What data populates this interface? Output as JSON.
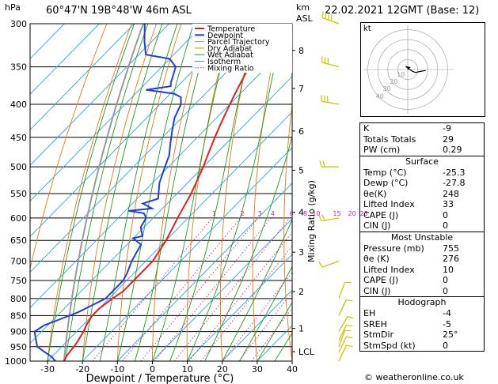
{
  "header": {
    "pressure_unit": "hPa",
    "location": "60°47'N  19B°48'W  46m  ASL",
    "km_label": "km",
    "asl_label": "ASL",
    "datetime": "22.02.2021  12GMT  (Base: 12)"
  },
  "colors": {
    "temperature": "#dd2222",
    "dewpoint": "#1f3fd6",
    "parcel": "#999999",
    "dry_adiabat": "#e07a1a",
    "wet_adiabat": "#1f9a1f",
    "isotherm": "#2aa6e0",
    "mixing_ratio": "#cc2299",
    "wind": "#c8c800"
  },
  "legend": {
    "items": [
      "Temperature",
      "Dewpoint",
      "Parcel Trajectory",
      "Dry Adiabat",
      "Wet Adiabat",
      "Isotherm",
      "Mixing Ratio"
    ]
  },
  "chart_data": {
    "type": "skew-t log-p",
    "xlabel": "Dewpoint / Temperature (°C)",
    "x_ticks": [
      "-30",
      "-20",
      "-10",
      "0",
      "10",
      "20",
      "30",
      "40"
    ],
    "x_range": [
      -35,
      40
    ],
    "pressure_ticks": [
      "300",
      "350",
      "400",
      "450",
      "500",
      "550",
      "600",
      "650",
      "700",
      "750",
      "800",
      "850",
      "900",
      "950",
      "1000"
    ],
    "pressure_range": [
      300,
      1000
    ],
    "km_ticks": [
      {
        "label": "8",
        "p": 330
      },
      {
        "label": "7",
        "p": 378
      },
      {
        "label": "6",
        "p": 440
      },
      {
        "label": "5",
        "p": 506
      },
      {
        "label": "4",
        "p": 588
      },
      {
        "label": "3",
        "p": 678
      },
      {
        "label": "2",
        "p": 780
      },
      {
        "label": "1",
        "p": 890
      },
      {
        "label": "LCL",
        "p": 967
      }
    ],
    "mixing_ratio_label": "Mixing Ratio (g/kg)",
    "mixing_ratio_values": [
      "1",
      "2",
      "3",
      "4",
      "6",
      "8",
      "10",
      "15",
      "20",
      "25"
    ],
    "mixing_ratio_label_pressure": 600,
    "temperature_series": {
      "name": "Temperature",
      "points": [
        {
          "p": 300,
          "t": -57
        },
        {
          "p": 320,
          "t": -56
        },
        {
          "p": 350,
          "t": -55
        },
        {
          "p": 380,
          "t": -52
        },
        {
          "p": 400,
          "t": -50
        },
        {
          "p": 430,
          "t": -47
        },
        {
          "p": 450,
          "t": -45
        },
        {
          "p": 480,
          "t": -42
        },
        {
          "p": 500,
          "t": -40
        },
        {
          "p": 550,
          "t": -36
        },
        {
          "p": 600,
          "t": -33
        },
        {
          "p": 650,
          "t": -30
        },
        {
          "p": 700,
          "t": -28
        },
        {
          "p": 750,
          "t": -28
        },
        {
          "p": 780,
          "t": -28
        },
        {
          "p": 800,
          "t": -29
        },
        {
          "p": 830,
          "t": -30
        },
        {
          "p": 850,
          "t": -30
        },
        {
          "p": 880,
          "t": -29
        },
        {
          "p": 900,
          "t": -28
        },
        {
          "p": 930,
          "t": -27
        },
        {
          "p": 950,
          "t": -26.5
        },
        {
          "p": 980,
          "t": -26
        },
        {
          "p": 1000,
          "t": -25.3
        }
      ]
    },
    "dewpoint_series": {
      "name": "Dewpoint",
      "points": [
        {
          "p": 300,
          "t": -97
        },
        {
          "p": 320,
          "t": -92
        },
        {
          "p": 335,
          "t": -88
        },
        {
          "p": 340,
          "t": -80
        },
        {
          "p": 350,
          "t": -76
        },
        {
          "p": 370,
          "t": -73
        },
        {
          "p": 375,
          "t": -72
        },
        {
          "p": 380,
          "t": -78
        },
        {
          "p": 385,
          "t": -69
        },
        {
          "p": 390,
          "t": -66
        },
        {
          "p": 400,
          "t": -64
        },
        {
          "p": 420,
          "t": -62
        },
        {
          "p": 440,
          "t": -59
        },
        {
          "p": 460,
          "t": -56
        },
        {
          "p": 480,
          "t": -53
        },
        {
          "p": 500,
          "t": -51
        },
        {
          "p": 530,
          "t": -48
        },
        {
          "p": 560,
          "t": -44
        },
        {
          "p": 570,
          "t": -47
        },
        {
          "p": 580,
          "t": -43
        },
        {
          "p": 585,
          "t": -49
        },
        {
          "p": 590,
          "t": -44
        },
        {
          "p": 600,
          "t": -42
        },
        {
          "p": 620,
          "t": -41
        },
        {
          "p": 640,
          "t": -38
        },
        {
          "p": 645,
          "t": -40
        },
        {
          "p": 660,
          "t": -36
        },
        {
          "p": 680,
          "t": -35
        },
        {
          "p": 700,
          "t": -34
        },
        {
          "p": 730,
          "t": -32
        },
        {
          "p": 750,
          "t": -31
        },
        {
          "p": 780,
          "t": -31
        },
        {
          "p": 800,
          "t": -31
        },
        {
          "p": 820,
          "t": -33
        },
        {
          "p": 840,
          "t": -35
        },
        {
          "p": 860,
          "t": -38
        },
        {
          "p": 880,
          "t": -41
        },
        {
          "p": 900,
          "t": -42
        },
        {
          "p": 920,
          "t": -40
        },
        {
          "p": 950,
          "t": -37
        },
        {
          "p": 970,
          "t": -33
        },
        {
          "p": 985,
          "t": -30
        },
        {
          "p": 1000,
          "t": -27.8
        }
      ]
    },
    "wind_barbs": [
      {
        "p": 300,
        "dir": 290,
        "kt": 35
      },
      {
        "p": 350,
        "dir": 285,
        "kt": 30
      },
      {
        "p": 400,
        "dir": 280,
        "kt": 25
      },
      {
        "p": 500,
        "dir": 270,
        "kt": 20
      },
      {
        "p": 600,
        "dir": 260,
        "kt": 15
      },
      {
        "p": 700,
        "dir": 250,
        "kt": 10
      },
      {
        "p": 800,
        "dir": 20,
        "kt": 5
      },
      {
        "p": 850,
        "dir": 25,
        "kt": 5
      },
      {
        "p": 900,
        "dir": 30,
        "kt": 5
      },
      {
        "p": 930,
        "dir": 25,
        "kt": 5
      },
      {
        "p": 950,
        "dir": 20,
        "kt": 5
      },
      {
        "p": 970,
        "dir": 25,
        "kt": 5
      },
      {
        "p": 1000,
        "dir": 25,
        "kt": 5
      }
    ]
  },
  "hodograph": {
    "unit_label": "kt",
    "ring_labels": [
      "10",
      "20",
      "30",
      "40"
    ],
    "points": [
      [
        0,
        0
      ],
      [
        1,
        1
      ],
      [
        2,
        2
      ],
      [
        -2,
        3
      ],
      [
        5,
        -2
      ],
      [
        8,
        -3
      ],
      [
        12,
        -2
      ],
      [
        18,
        -1
      ]
    ]
  },
  "indices": {
    "top": [
      {
        "label": "K",
        "value": "-9"
      },
      {
        "label": "Totals Totals",
        "value": "29"
      },
      {
        "label": "PW (cm)",
        "value": "0.29"
      }
    ],
    "surface": {
      "title": "Surface",
      "rows": [
        {
          "label": "Temp (°C)",
          "value": "-25.3"
        },
        {
          "label": "Dewp (°C)",
          "value": "-27.8"
        },
        {
          "label": "θe(K)",
          "value": "248"
        },
        {
          "label": "Lifted Index",
          "value": "33"
        },
        {
          "label": "CAPE (J)",
          "value": "0"
        },
        {
          "label": "CIN (J)",
          "value": "0"
        }
      ]
    },
    "unstable": {
      "title": "Most Unstable",
      "rows": [
        {
          "label": "Pressure (mb)",
          "value": "755"
        },
        {
          "label": "θe (K)",
          "value": "276"
        },
        {
          "label": "Lifted Index",
          "value": "10"
        },
        {
          "label": "CAPE (J)",
          "value": "0"
        },
        {
          "label": "CIN (J)",
          "value": "0"
        }
      ]
    },
    "hodo": {
      "title": "Hodograph",
      "rows": [
        {
          "label": "EH",
          "value": "-4"
        },
        {
          "label": "SREH",
          "value": "-5"
        },
        {
          "label": "StmDir",
          "value": "25°"
        },
        {
          "label": "StmSpd (kt)",
          "value": "0"
        }
      ]
    }
  },
  "footer": {
    "copyright": "© weatheronline.co.uk"
  }
}
